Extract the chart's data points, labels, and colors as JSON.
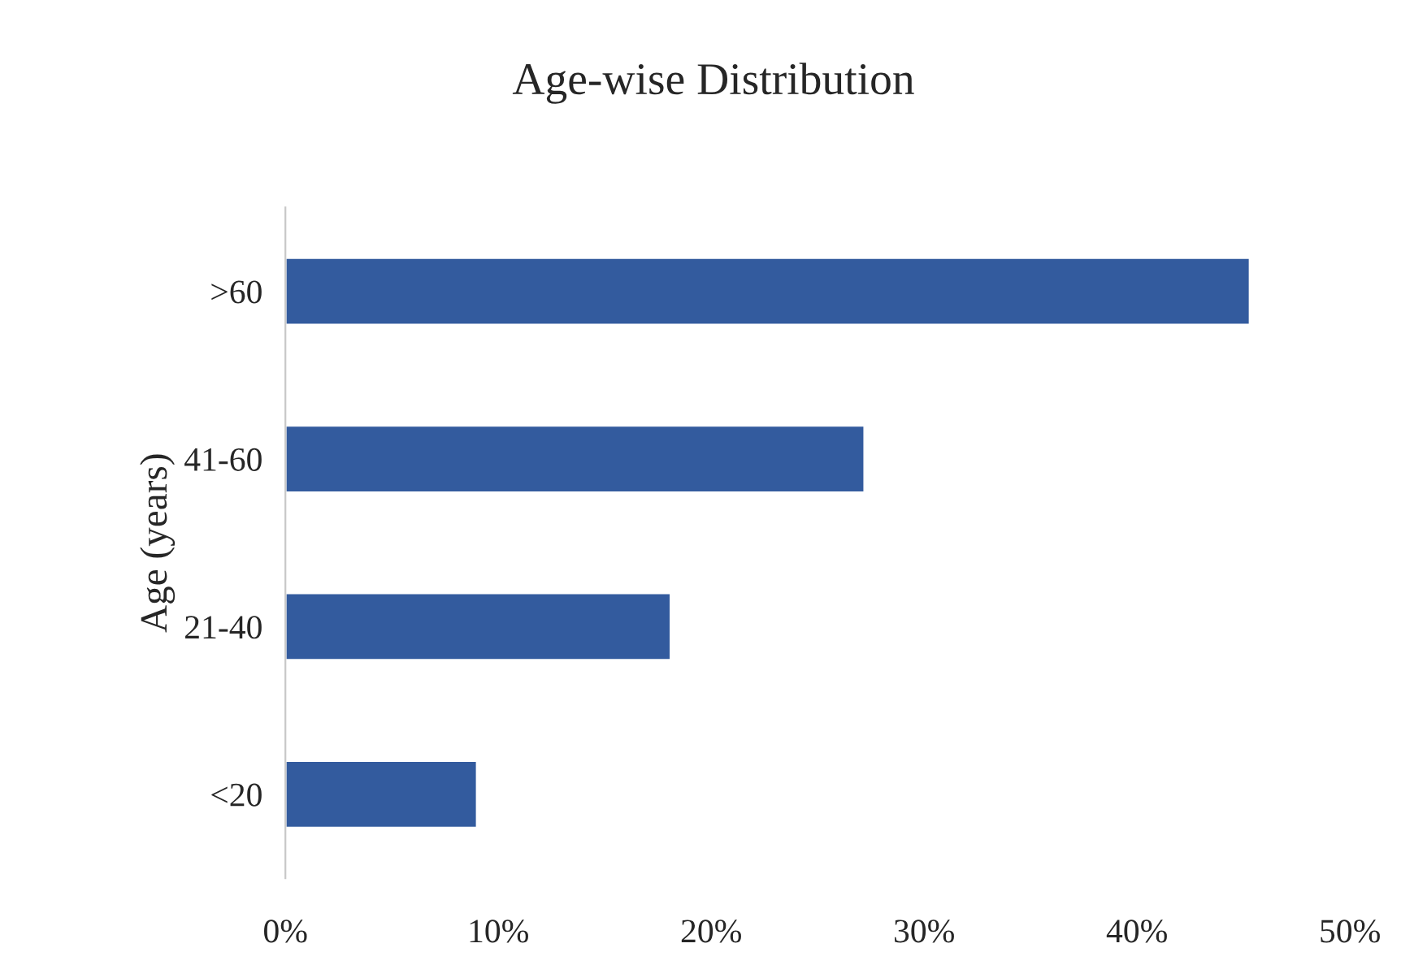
{
  "chart_data": {
    "type": "bar",
    "orientation": "horizontal",
    "title": "Age-wise Distribution",
    "ylabel": "Age (years)",
    "categories": [
      ">60",
      "41-60",
      "21-40",
      "<20"
    ],
    "values": [
      45.3,
      27.2,
      18.1,
      9.0
    ],
    "color": "#335b9e",
    "xlim": [
      0,
      50
    ],
    "xticks": [
      {
        "value": 0,
        "label": "0%"
      },
      {
        "value": 10,
        "label": "10%"
      },
      {
        "value": 20,
        "label": "20%"
      },
      {
        "value": 30,
        "label": "30%"
      },
      {
        "value": 40,
        "label": "40%"
      },
      {
        "value": 50,
        "label": "50%"
      }
    ],
    "grid": false,
    "legend": false
  }
}
